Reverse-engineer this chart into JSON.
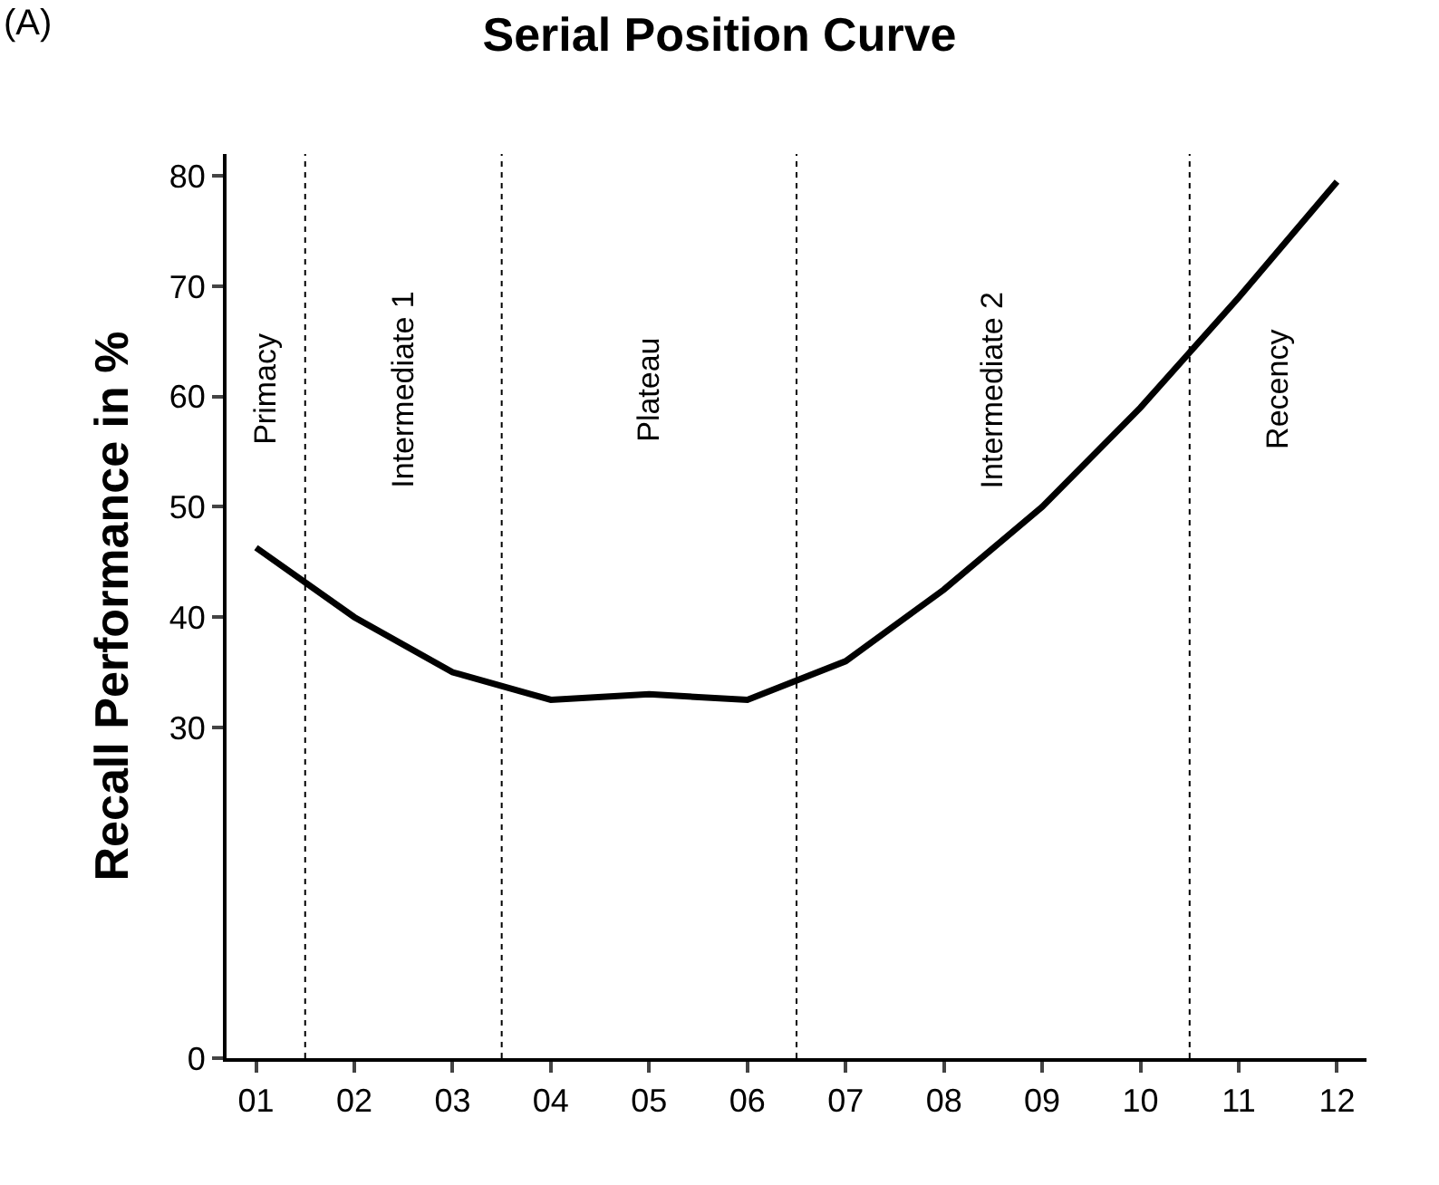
{
  "chart_data": {
    "type": "line",
    "title": "Serial Position Curve",
    "ylabel": "Recall Performance in %",
    "annotations": [
      "(A)",
      "Primacy",
      "Intermediate 1",
      "Plateau",
      "Intermediate 2",
      "Recency"
    ],
    "x": [
      1,
      2,
      3,
      4,
      5,
      6,
      7,
      8,
      9,
      10,
      11,
      12
    ],
    "series": [
      {
        "color": "#000000",
        "values": [
          46.3,
          40,
          35,
          32.5,
          33,
          32.5,
          36,
          42.5,
          50,
          59,
          69,
          79.5
        ]
      }
    ],
    "xlim": [
      0.7,
      12.3
    ],
    "xticks": [
      {
        "value": 1,
        "label": "01"
      },
      {
        "value": 2,
        "label": "02"
      },
      {
        "value": 3,
        "label": "03"
      },
      {
        "value": 4,
        "label": "04"
      },
      {
        "value": 5,
        "label": "05"
      },
      {
        "value": 6,
        "label": "06"
      },
      {
        "value": 7,
        "label": "07"
      },
      {
        "value": 8,
        "label": "08"
      },
      {
        "value": 9,
        "label": "09"
      },
      {
        "value": 10,
        "label": "10"
      },
      {
        "value": 11,
        "label": "11"
      },
      {
        "value": 12,
        "label": "12"
      }
    ],
    "ylim": [
      0,
      82
    ],
    "yticks": [
      0,
      30,
      40,
      50,
      60,
      70,
      80
    ],
    "ref_lines": [
      {
        "axis": "x",
        "value": 1.5,
        "line_style": "dotted"
      },
      {
        "axis": "x",
        "value": 3.5,
        "line_style": "dotted"
      },
      {
        "axis": "x",
        "value": 6.5,
        "line_style": "dotted"
      },
      {
        "axis": "x",
        "value": 10.5,
        "line_style": "dotted"
      }
    ],
    "marker": "none",
    "line_style": "solid"
  }
}
